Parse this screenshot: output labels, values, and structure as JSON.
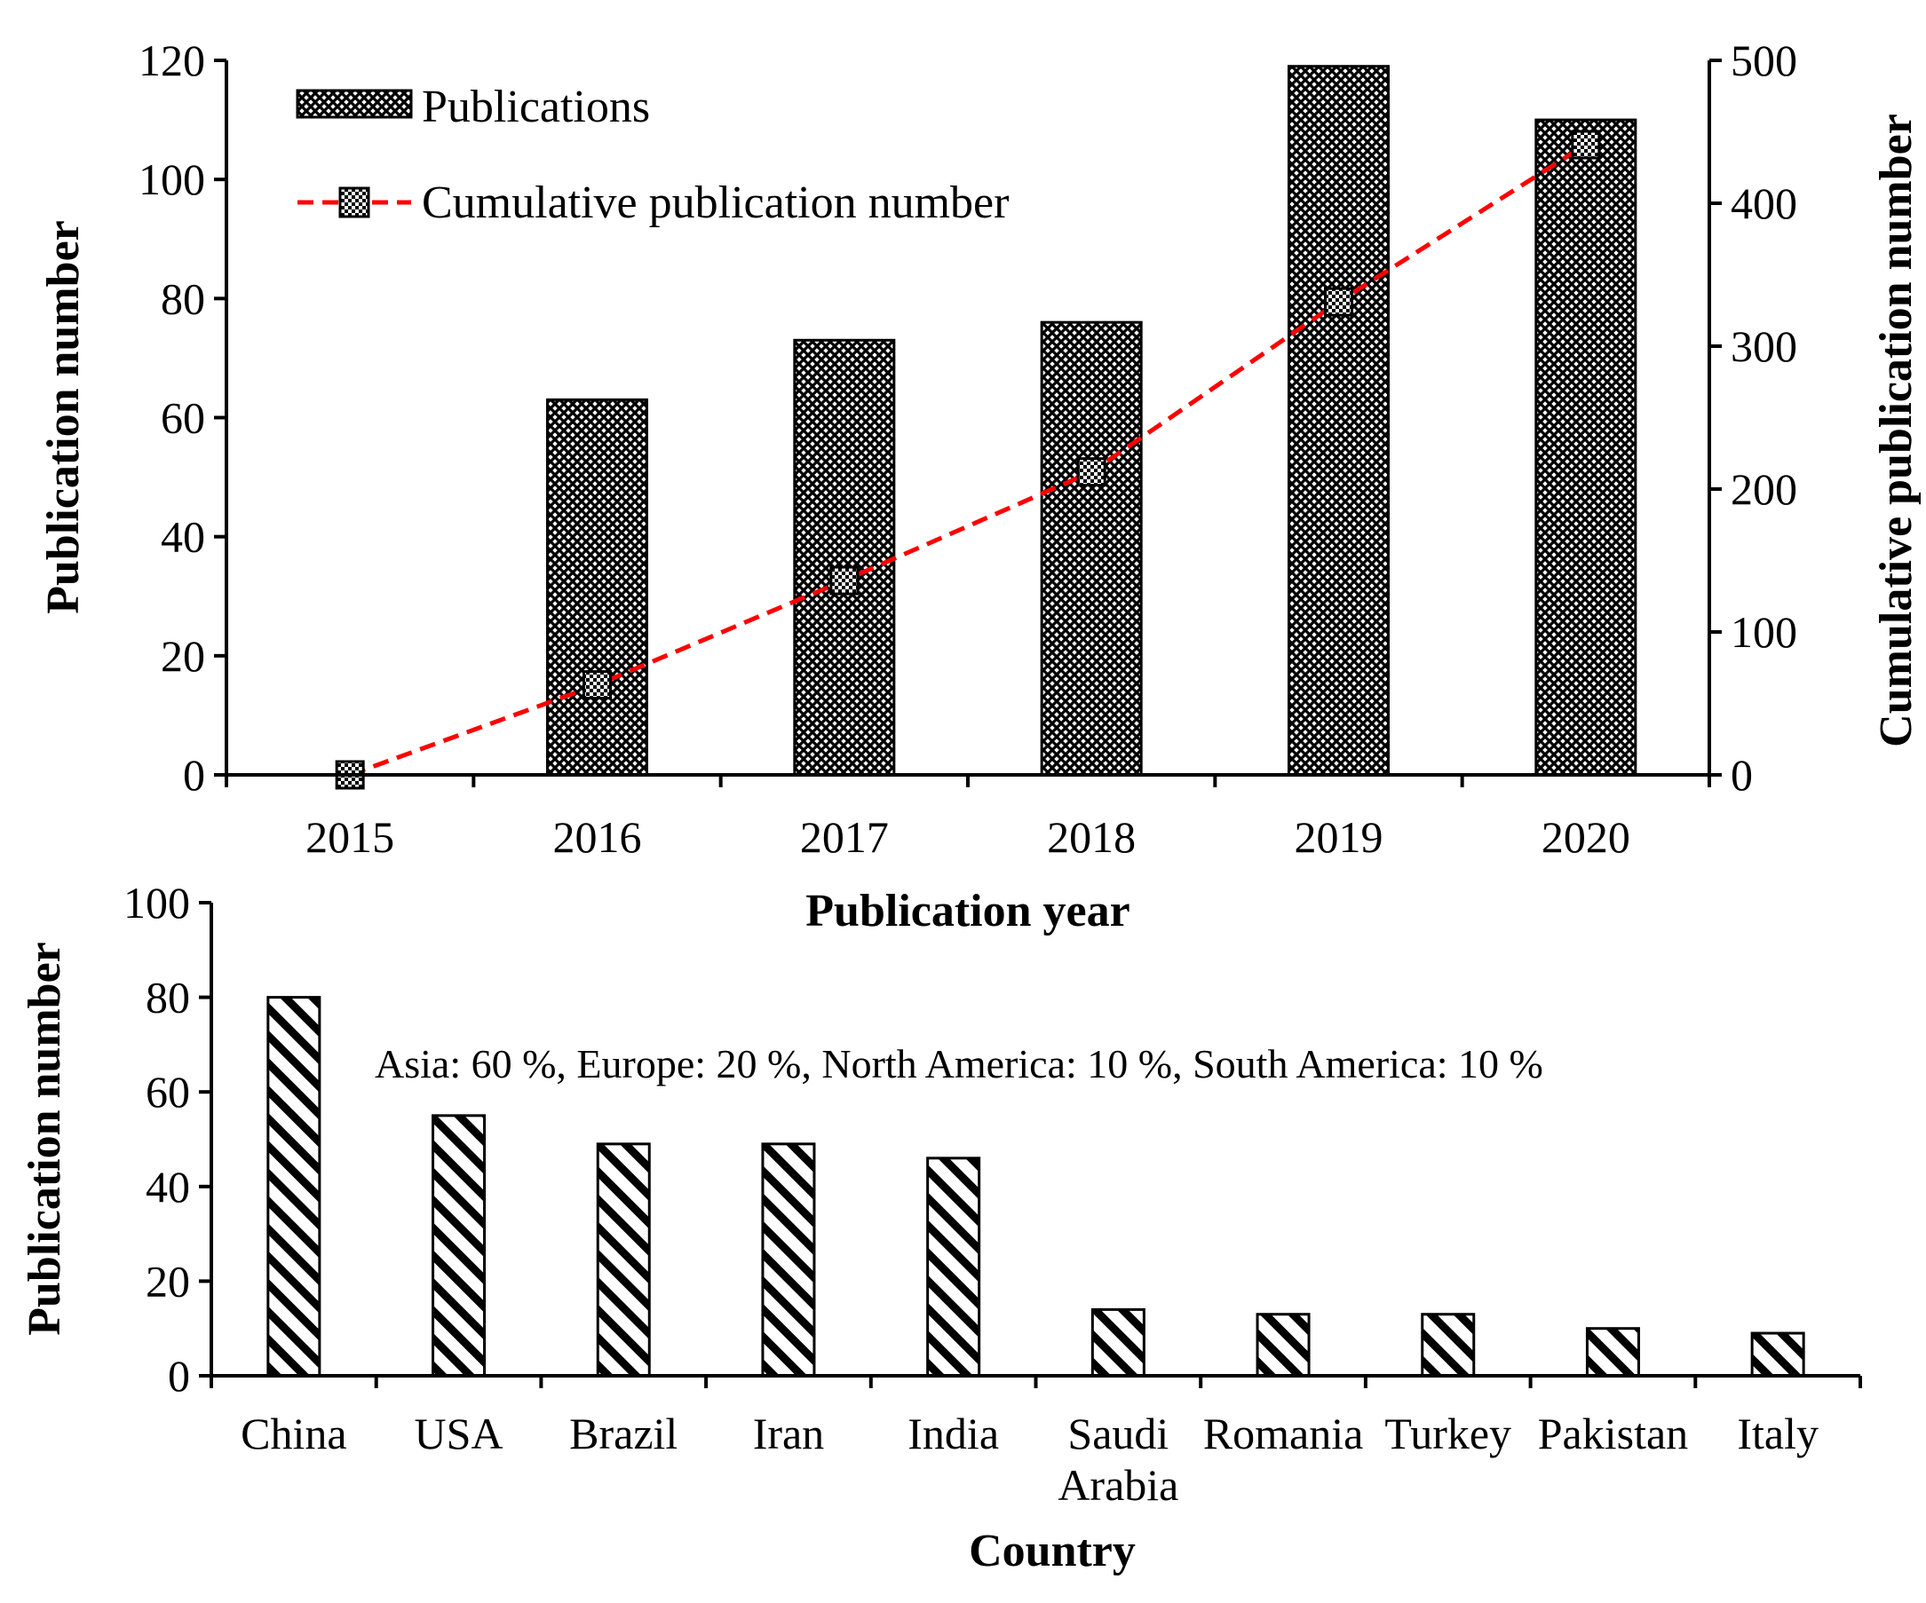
{
  "chart_data": [
    {
      "type": "bar+line",
      "title": "",
      "xlabel": "Publication year",
      "ylabel": "Publication number",
      "y2label": "Cumulative publication number",
      "categories": [
        "2015",
        "2016",
        "2017",
        "2018",
        "2019",
        "2020"
      ],
      "ylim": [
        0,
        120
      ],
      "yticks": [
        "0",
        "20",
        "40",
        "60",
        "80",
        "100",
        "120"
      ],
      "y2lim": [
        0,
        500
      ],
      "y2ticks": [
        "0",
        "100",
        "200",
        "300",
        "400",
        "500"
      ],
      "series": [
        {
          "name": "Publications",
          "kind": "bar",
          "axis": "left",
          "values": [
            0,
            63,
            73,
            76,
            119,
            110
          ]
        },
        {
          "name": "Cumulative publication number",
          "kind": "line",
          "axis": "right",
          "values": [
            0,
            63,
            136,
            212,
            331,
            441
          ]
        }
      ],
      "legend_position": "top-left"
    },
    {
      "type": "bar",
      "title": "",
      "xlabel": "Country",
      "ylabel": "Publication number",
      "categories": [
        "China",
        "USA",
        "Brazil",
        "Iran",
        "India",
        "Saudi Arabia",
        "Romania",
        "Turkey",
        "Pakistan",
        "Italy"
      ],
      "category_lines": [
        [
          "China"
        ],
        [
          "USA"
        ],
        [
          "Brazil"
        ],
        [
          "Iran"
        ],
        [
          "India"
        ],
        [
          "Saudi",
          "Arabia"
        ],
        [
          "Romania"
        ],
        [
          "Turkey"
        ],
        [
          "Pakistan"
        ],
        [
          "Italy"
        ]
      ],
      "values": [
        80,
        55,
        49,
        49,
        46,
        14,
        13,
        13,
        10,
        9
      ],
      "ylim": [
        0,
        100
      ],
      "yticks": [
        "0",
        "20",
        "40",
        "60",
        "80",
        "100"
      ],
      "annotation": "Asia: 60 %, Europe: 20 %, North America: 10 %, South America: 10 %"
    }
  ],
  "colors": {
    "bar_fill": "#000000",
    "line": "#ff0000",
    "axis": "#000000"
  }
}
